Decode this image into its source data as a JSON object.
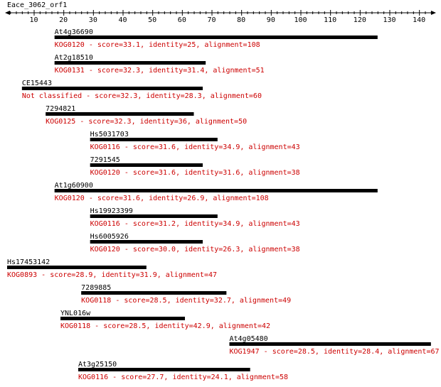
{
  "query": {
    "name": "Eace_3062_orf1",
    "axis": {
      "min": 1,
      "max": 145,
      "ticks": [
        10,
        20,
        30,
        40,
        50,
        60,
        70,
        80,
        90,
        100,
        110,
        120,
        130,
        140
      ]
    }
  },
  "colors": {
    "bar": "#000000",
    "label": "#000000",
    "description": "#cc0000"
  },
  "hits": [
    {
      "name": "At4g36690",
      "start": 17,
      "end": 126,
      "desc": "KOG0120 - score=33.1, identity=25, alignment=108"
    },
    {
      "name": "At2g18510",
      "start": 17,
      "end": 68,
      "desc": "KOG0131 - score=32.3, identity=31.4, alignment=51"
    },
    {
      "name": "CE15443",
      "start": 6,
      "end": 67,
      "desc": "Not classified - score=32.3, identity=28.3, alignment=60"
    },
    {
      "name": "7294821",
      "start": 14,
      "end": 64,
      "desc": "KOG0125 - score=32.3, identity=36, alignment=50"
    },
    {
      "name": "Hs5031703",
      "start": 29,
      "end": 72,
      "desc": "KOG0116 - score=31.6, identity=34.9, alignment=43"
    },
    {
      "name": "7291545",
      "start": 29,
      "end": 67,
      "desc": "KOG0120 - score=31.6, identity=31.6, alignment=38"
    },
    {
      "name": "At1g60900",
      "start": 17,
      "end": 126,
      "desc": "KOG0120 - score=31.6, identity=26.9, alignment=108"
    },
    {
      "name": "Hs19923399",
      "start": 29,
      "end": 72,
      "desc": "KOG0116 - score=31.2, identity=34.9, alignment=43"
    },
    {
      "name": "Hs6005926",
      "start": 29,
      "end": 67,
      "desc": "KOG0120 - score=30.0, identity=26.3, alignment=38"
    },
    {
      "name": "Hs17453142",
      "start": 1,
      "end": 48,
      "desc": "KOG0893 - score=28.9, identity=31.9, alignment=47"
    },
    {
      "name": "7289885",
      "start": 26,
      "end": 75,
      "desc": "KOG0118 - score=28.5, identity=32.7, alignment=49"
    },
    {
      "name": "YNL016w",
      "start": 19,
      "end": 61,
      "desc": "KOG0118 - score=28.5, identity=42.9, alignment=42"
    },
    {
      "name": "At4g05480",
      "start": 76,
      "end": 144,
      "desc": "KOG1947 - score=28.5, identity=28.4, alignment=67"
    },
    {
      "name": "At3g25150",
      "start": 25,
      "end": 83,
      "desc": "KOG0116 - score=27.7, identity=24.1, alignment=58"
    }
  ]
}
